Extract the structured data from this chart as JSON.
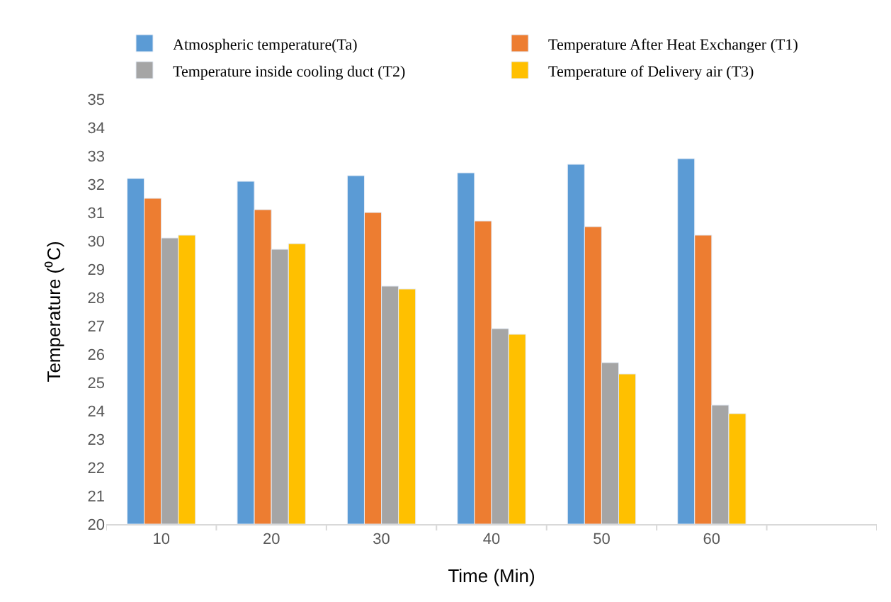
{
  "chart_data": {
    "type": "bar",
    "xlabel": "Time (Min)",
    "ylabel": "Temperature (⁰C)",
    "categories": [
      "10",
      "20",
      "30",
      "40",
      "50",
      "60",
      null
    ],
    "series": [
      {
        "name": "Atmospheric temperature(Ta)",
        "color": "#5b9bd5",
        "values": [
          32.2,
          32.1,
          32.3,
          32.4,
          32.7,
          32.9,
          null
        ]
      },
      {
        "name": "Temperature After Heat Exchanger (T1)",
        "color": "#ed7d31",
        "values": [
          31.5,
          31.1,
          31.0,
          30.7,
          30.5,
          30.2,
          null
        ]
      },
      {
        "name": "Temperature inside cooling duct (T2)",
        "color": "#a5a5a5",
        "values": [
          30.1,
          29.7,
          28.4,
          26.9,
          25.7,
          24.2,
          null
        ]
      },
      {
        "name": "Temperature of Delivery air (T3)",
        "color": "#ffc000",
        "values": [
          30.2,
          29.9,
          28.3,
          26.7,
          25.3,
          23.9,
          null
        ]
      }
    ],
    "ylim": [
      20,
      35
    ],
    "yticks": [
      20,
      21,
      22,
      23,
      24,
      25,
      26,
      27,
      28,
      29,
      30,
      31,
      32,
      33,
      34,
      35
    ],
    "legend": "top"
  }
}
